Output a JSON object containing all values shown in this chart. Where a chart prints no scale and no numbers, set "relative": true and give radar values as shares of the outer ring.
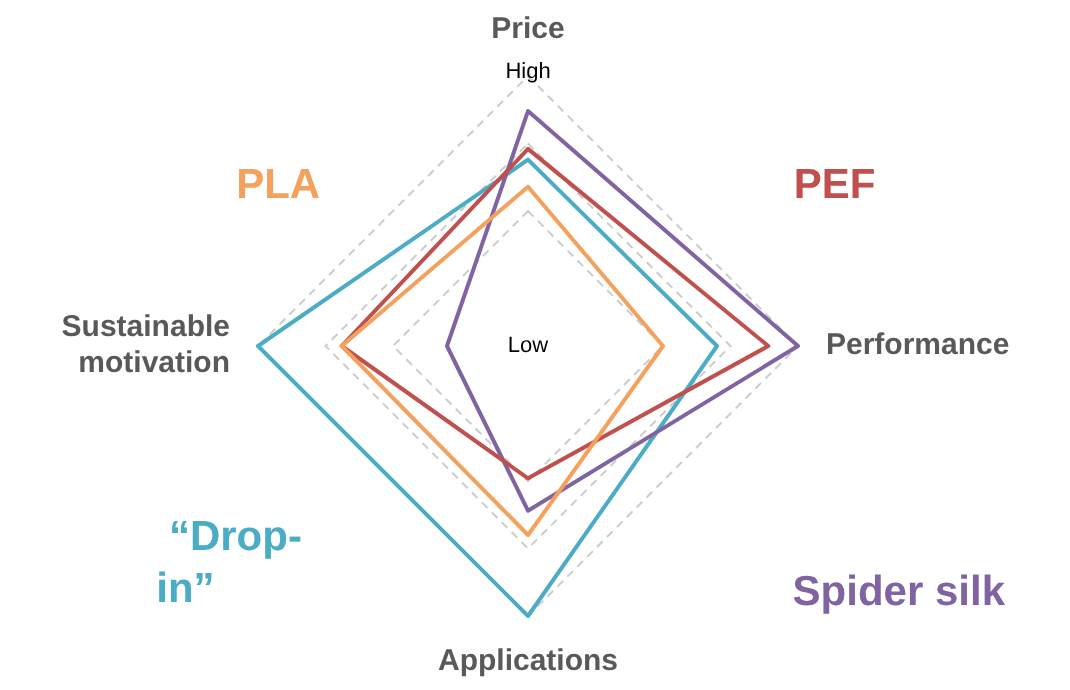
{
  "chart_data": {
    "type": "radar",
    "relative": true,
    "grid": true,
    "legend": false,
    "marker": "none",
    "categories": [
      "Price",
      "Performance",
      "Applications",
      "Sustainable motivation"
    ],
    "series": [
      {
        "name": "PLA",
        "color": "#f4a15d",
        "values": [
          0.59,
          0.5,
          0.7,
          0.69
        ]
      },
      {
        "name": "PEF",
        "color": "#c0504d",
        "values": [
          0.73,
          0.89,
          0.49,
          0.69
        ]
      },
      {
        "name": "Spider silk",
        "color": "#8064a2",
        "values": [
          0.87,
          1.0,
          0.61,
          0.3
        ]
      },
      {
        "name": "“Drop-in”",
        "color": "#4bacc6",
        "values": [
          0.69,
          0.7,
          1.0,
          1.0
        ]
      }
    ],
    "annotations": [
      "High",
      "Low"
    ]
  }
}
